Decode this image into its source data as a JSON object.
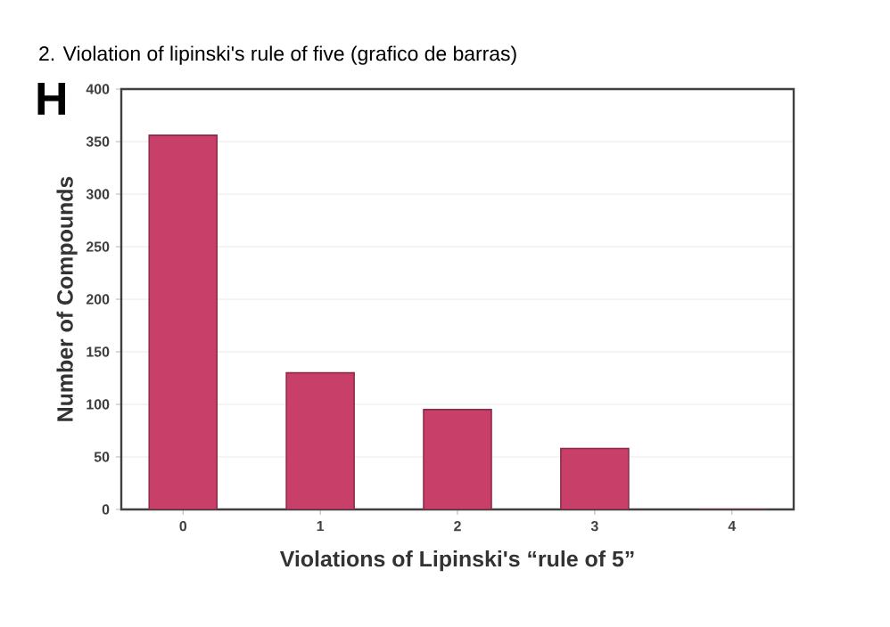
{
  "chart_data": {
    "type": "bar",
    "title": "2. Violation of lipinski's rule of five (grafico de barras)",
    "annotations": [
      "H"
    ],
    "categories": [
      "0",
      "1",
      "2",
      "3",
      "4"
    ],
    "values": [
      356,
      130,
      95,
      58,
      0
    ],
    "color": "#c8406a",
    "xlabel": "Violations of Lipinski's “rule of 5”",
    "ylabel": "Number of Compounds",
    "ylim": [
      0,
      400
    ],
    "yticks": [
      0,
      50,
      100,
      150,
      200,
      250,
      300,
      350,
      400
    ],
    "grid": "y"
  }
}
